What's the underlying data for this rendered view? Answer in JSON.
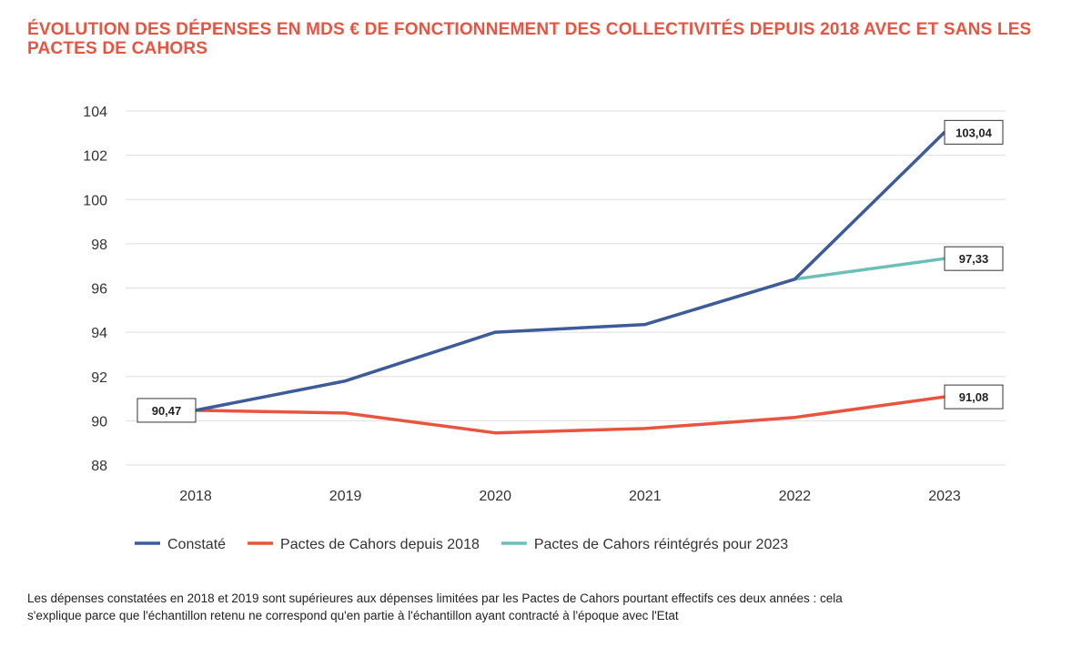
{
  "title": "ÉVOLUTION DES DÉPENSES EN MDS € DE FONCTIONNEMENT DES COLLECTIVITÉS DEPUIS 2018 AVEC ET SANS LES PACTES DE CAHORS",
  "footnote": {
    "line1": "Les dépenses constatées en 2018 et 2019 sont supérieures aux dépenses limitées par les Pactes de Cahors pourtant effectifs ces deux années : cela",
    "line2": "s'explique parce que l'échantillon retenu ne correspond qu'en partie à l'échantillon ayant contracté à l'époque avec l'Etat"
  },
  "chart_data": {
    "type": "line",
    "title": "ÉVOLUTION DES DÉPENSES EN MDS € DE FONCTIONNEMENT DES COLLECTIVITÉS DEPUIS 2018 AVEC ET SANS LES PACTES DE CAHORS",
    "xlabel": "",
    "ylabel": "",
    "categories": [
      "2018",
      "2019",
      "2020",
      "2021",
      "2022",
      "2023"
    ],
    "ylim": [
      88,
      104
    ],
    "yticks": [
      88,
      90,
      92,
      94,
      96,
      98,
      100,
      102,
      104
    ],
    "grid": true,
    "legend_position": "bottom",
    "series": [
      {
        "name": "Constaté",
        "color": "#3d5a99",
        "x": [
          "2018",
          "2019",
          "2020",
          "2021",
          "2022",
          "2023"
        ],
        "values": [
          90.47,
          91.8,
          94.0,
          94.35,
          96.4,
          103.04
        ]
      },
      {
        "name": "Pactes de Cahors depuis 2018",
        "color": "#e8543f",
        "x": [
          "2018",
          "2019",
          "2020",
          "2021",
          "2022",
          "2023"
        ],
        "values": [
          90.47,
          90.35,
          89.45,
          89.65,
          90.15,
          91.08
        ]
      },
      {
        "name": "Pactes de Cahors réintégrés pour 2023",
        "color": "#6bbfb7",
        "x": [
          "2022",
          "2023"
        ],
        "values": [
          96.4,
          97.33
        ]
      }
    ],
    "data_labels": [
      {
        "text": "90,47",
        "x": "2018",
        "y": 90.47,
        "anchor": "left"
      },
      {
        "text": "103,04",
        "x": "2023",
        "y": 103.04,
        "anchor": "right"
      },
      {
        "text": "97,33",
        "x": "2023",
        "y": 97.33,
        "anchor": "right"
      },
      {
        "text": "91,08",
        "x": "2023",
        "y": 91.08,
        "anchor": "right"
      }
    ]
  }
}
